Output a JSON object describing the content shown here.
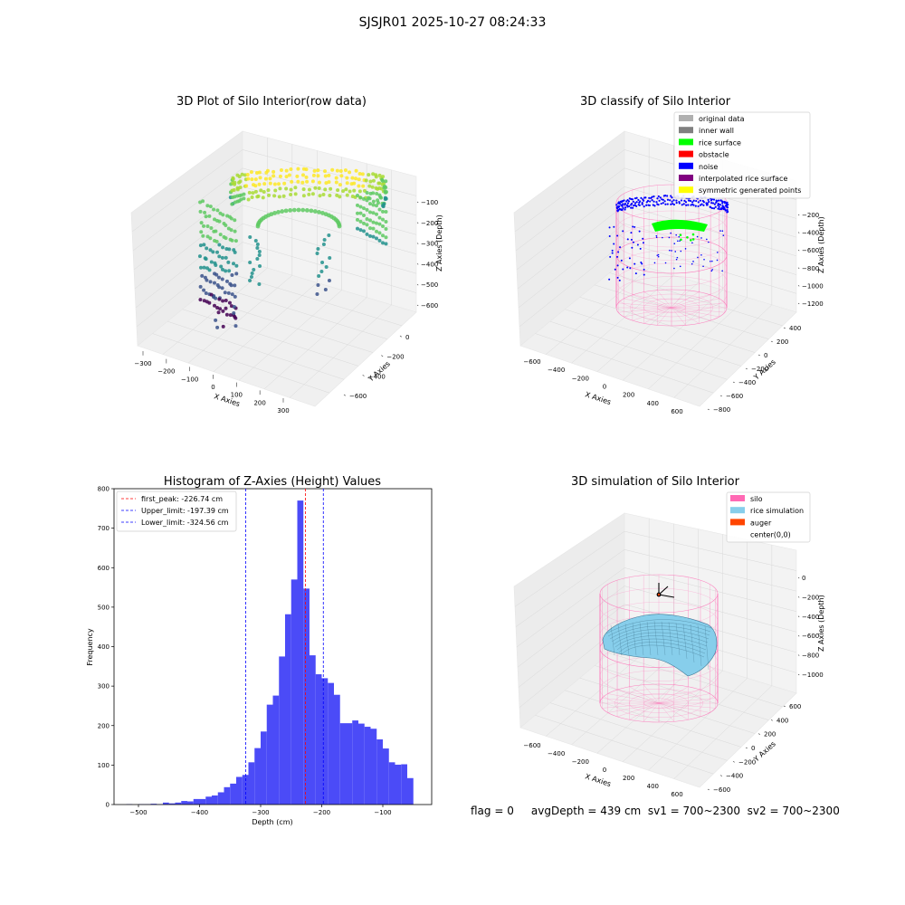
{
  "figure": {
    "suptitle": "SJSJR01 2025-10-27 08:24:33",
    "status_line": "flag = 0     avgDepth = 439 cm  sv1 = 700~2300  sv2 = 700~2300"
  },
  "colors": {
    "hist_bar": "#4b4bf7",
    "peak_line": "#ff0000",
    "limit_line": "#0000ff",
    "pane": "#f2f2f2",
    "grid": "#d8d8d8",
    "silo_pink": "#ff69b4",
    "rice_blue": "#87ceeb",
    "auger": "#ff4500",
    "noise_blue": "#0000ff",
    "rice_green": "#00ff00"
  },
  "panels": {
    "raw": {
      "title": "3D Plot of Silo Interior(row data)",
      "xlabel": "X Axies",
      "ylabel": "Y Axies",
      "zlabel": "Z Axies (Depth)",
      "x_ticks": [
        "−300",
        "−200",
        "−100",
        "0",
        "100",
        "200",
        "300"
      ],
      "y_ticks": [
        "0",
        "−200",
        "−400",
        "−600"
      ],
      "z_ticks": [
        "−100",
        "−200",
        "−300",
        "−400",
        "−500",
        "−600"
      ]
    },
    "classify": {
      "title": "3D classify of Silo Interior",
      "xlabel": "X Axies",
      "ylabel": "Y Axies",
      "zlabel": "Z Axies (Depth)",
      "x_ticks": [
        "−600",
        "−400",
        "−200",
        "0",
        "200",
        "400",
        "600"
      ],
      "y_ticks": [
        "400",
        "200",
        "0",
        "−200",
        "−400",
        "−600",
        "−800"
      ],
      "z_ticks": [
        "−200",
        "−400",
        "−600",
        "−800",
        "−1000",
        "−1200"
      ],
      "legend": [
        {
          "label": "original data",
          "color": "#b0b0b0"
        },
        {
          "label": "inner wall",
          "color": "#808080"
        },
        {
          "label": "rice surface",
          "color": "#00ff00"
        },
        {
          "label": "obstacle",
          "color": "#ff0000"
        },
        {
          "label": "noise",
          "color": "#0000ff"
        },
        {
          "label": "interpolated rice surface",
          "color": "#800080"
        },
        {
          "label": "symmetric generated points",
          "color": "#ffff00"
        }
      ]
    },
    "simulation": {
      "title": "3D simulation of Silo Interior",
      "xlabel": "X Axies",
      "ylabel": "Y Axies",
      "zlabel": "Z Axies (Depth)",
      "x_ticks": [
        "−600",
        "−400",
        "−200",
        "0",
        "200",
        "400",
        "600"
      ],
      "y_ticks": [
        "600",
        "400",
        "200",
        "0",
        "−200",
        "−400",
        "−600"
      ],
      "z_ticks": [
        "0",
        "−200",
        "−400",
        "−600",
        "−800",
        "−1000"
      ],
      "legend": [
        {
          "label": "silo",
          "color": "#ff69b4"
        },
        {
          "label": "rice simulation",
          "color": "#87ceeb"
        },
        {
          "label": "auger",
          "color": "#ff4500"
        },
        {
          "label": "center(0,0)",
          "color": ""
        }
      ]
    }
  },
  "chart_data": {
    "type": "bar",
    "title": "Histogram of Z-Axies (Height) Values",
    "xlabel": "Depth (cm)",
    "ylabel": "Frequency",
    "xlim": [
      -540,
      -20
    ],
    "ylim": [
      0,
      800
    ],
    "x_ticks": [
      -500,
      -400,
      -300,
      -200,
      -100
    ],
    "y_ticks": [
      0,
      100,
      200,
      300,
      400,
      500,
      600,
      700,
      800
    ],
    "bins": [
      {
        "x0": -520,
        "x1": -510,
        "value": 1
      },
      {
        "x0": -510,
        "x1": -500,
        "value": 0
      },
      {
        "x0": -500,
        "x1": -490,
        "value": 1
      },
      {
        "x0": -490,
        "x1": -480,
        "value": 1
      },
      {
        "x0": -480,
        "x1": -470,
        "value": 2
      },
      {
        "x0": -470,
        "x1": -460,
        "value": 1
      },
      {
        "x0": -460,
        "x1": -450,
        "value": 5
      },
      {
        "x0": -450,
        "x1": -440,
        "value": 3
      },
      {
        "x0": -440,
        "x1": -430,
        "value": 5
      },
      {
        "x0": -430,
        "x1": -420,
        "value": 9
      },
      {
        "x0": -420,
        "x1": -410,
        "value": 8
      },
      {
        "x0": -410,
        "x1": -400,
        "value": 14
      },
      {
        "x0": -400,
        "x1": -390,
        "value": 14
      },
      {
        "x0": -390,
        "x1": -380,
        "value": 20
      },
      {
        "x0": -380,
        "x1": -370,
        "value": 23
      },
      {
        "x0": -370,
        "x1": -360,
        "value": 31
      },
      {
        "x0": -360,
        "x1": -350,
        "value": 44
      },
      {
        "x0": -350,
        "x1": -340,
        "value": 53
      },
      {
        "x0": -340,
        "x1": -330,
        "value": 70
      },
      {
        "x0": -330,
        "x1": -320,
        "value": 75
      },
      {
        "x0": -320,
        "x1": -310,
        "value": 107
      },
      {
        "x0": -310,
        "x1": -300,
        "value": 143
      },
      {
        "x0": -300,
        "x1": -290,
        "value": 185
      },
      {
        "x0": -290,
        "x1": -280,
        "value": 253
      },
      {
        "x0": -280,
        "x1": -270,
        "value": 276
      },
      {
        "x0": -270,
        "x1": -260,
        "value": 375
      },
      {
        "x0": -260,
        "x1": -250,
        "value": 482
      },
      {
        "x0": -250,
        "x1": -240,
        "value": 570
      },
      {
        "x0": -240,
        "x1": -230,
        "value": 770
      },
      {
        "x0": -230,
        "x1": -220,
        "value": 547
      },
      {
        "x0": -220,
        "x1": -210,
        "value": 378
      },
      {
        "x0": -210,
        "x1": -200,
        "value": 330
      },
      {
        "x0": -200,
        "x1": -190,
        "value": 320
      },
      {
        "x0": -190,
        "x1": -180,
        "value": 308
      },
      {
        "x0": -180,
        "x1": -170,
        "value": 278
      },
      {
        "x0": -170,
        "x1": -160,
        "value": 206
      },
      {
        "x0": -160,
        "x1": -150,
        "value": 206
      },
      {
        "x0": -150,
        "x1": -140,
        "value": 213
      },
      {
        "x0": -140,
        "x1": -130,
        "value": 205
      },
      {
        "x0": -130,
        "x1": -120,
        "value": 197
      },
      {
        "x0": -120,
        "x1": -110,
        "value": 192
      },
      {
        "x0": -110,
        "x1": -100,
        "value": 165
      },
      {
        "x0": -100,
        "x1": -90,
        "value": 142
      },
      {
        "x0": -90,
        "x1": -80,
        "value": 107
      },
      {
        "x0": -80,
        "x1": -70,
        "value": 101
      },
      {
        "x0": -70,
        "x1": -60,
        "value": 102
      },
      {
        "x0": -60,
        "x1": -50,
        "value": 67
      }
    ],
    "vlines": [
      {
        "label": "first_peak: -226.74 cm",
        "x": -226.74,
        "color": "#ff0000"
      },
      {
        "label": "Upper_limit: -197.39 cm",
        "x": -197.39,
        "color": "#0000ff"
      },
      {
        "label": "Lower_limit: -324.56 cm",
        "x": -324.56,
        "color": "#0000ff"
      }
    ],
    "grid": false,
    "legend_position": "top-left"
  }
}
